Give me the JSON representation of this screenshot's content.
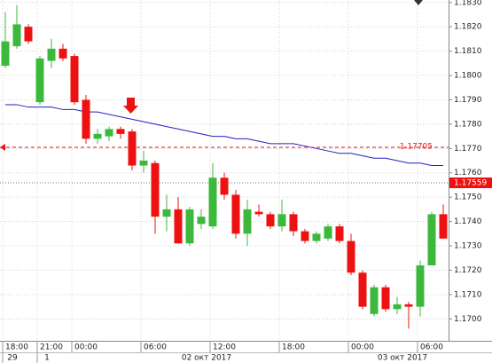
{
  "chart_data": {
    "type": "candlestick",
    "categories": [
      "18:00",
      null,
      null,
      "21:00",
      null,
      null,
      "00:00",
      null,
      null,
      null,
      null,
      null,
      "06:00",
      null,
      null,
      null,
      null,
      null,
      "12:00",
      null,
      null,
      null,
      null,
      null,
      "18:00",
      null,
      null,
      null,
      null,
      null,
      "00:00",
      null,
      null,
      null,
      null,
      null,
      "06:00",
      null,
      null
    ],
    "dates": [
      "29",
      null,
      null,
      "1",
      null,
      null,
      null,
      null,
      null,
      null,
      null,
      null,
      null,
      null,
      null,
      null,
      null,
      "02 окт 2017",
      null,
      null,
      null,
      null,
      null,
      null,
      null,
      null,
      null,
      null,
      null,
      null,
      null,
      null,
      null,
      null,
      "03 окт 2017",
      null,
      null,
      null,
      null
    ],
    "open": [
      1.1804,
      1.1812,
      1.182,
      1.1789,
      1.1806,
      1.1811,
      1.1808,
      1.179,
      1.1774,
      1.1775,
      1.1778,
      1.1777,
      1.1763,
      1.1764,
      1.1742,
      1.1745,
      1.1731,
      1.1739,
      1.1738,
      1.1758,
      1.1751,
      1.1735,
      1.1744,
      1.1743,
      1.1738,
      1.1743,
      1.1736,
      1.1732,
      1.1733,
      1.1738,
      1.1732,
      1.1719,
      1.1702,
      1.1713,
      1.1704,
      1.1706,
      1.1705,
      1.1722,
      1.1743
    ],
    "high": [
      1.1826,
      1.1829,
      1.1821,
      1.1808,
      1.1815,
      1.1813,
      1.1809,
      1.1792,
      1.1778,
      1.1779,
      1.1779,
      1.1778,
      1.1769,
      1.1765,
      1.1751,
      1.175,
      1.1746,
      1.1745,
      1.1764,
      1.176,
      1.1753,
      1.1749,
      1.1747,
      1.1744,
      1.1749,
      1.1744,
      1.1737,
      1.1736,
      1.1739,
      1.1739,
      1.1735,
      1.172,
      1.1714,
      1.1714,
      1.1709,
      1.1707,
      1.1724,
      1.1744,
      1.1747
    ],
    "low": [
      1.1803,
      1.1811,
      1.1813,
      1.1788,
      1.1803,
      1.1806,
      1.1788,
      1.1772,
      1.1772,
      1.1773,
      1.1774,
      1.1761,
      1.176,
      1.1735,
      1.1736,
      1.1731,
      1.173,
      1.1737,
      1.1737,
      1.1749,
      1.1733,
      1.173,
      1.1742,
      1.1737,
      1.1736,
      1.1734,
      1.1731,
      1.1731,
      1.1732,
      1.1731,
      1.1718,
      1.1704,
      1.1701,
      1.1703,
      1.1702,
      1.1696,
      1.1701,
      1.1722,
      1.1733
    ],
    "close": [
      1.1814,
      1.1821,
      1.1814,
      1.1807,
      1.1811,
      1.1807,
      1.1789,
      1.1774,
      1.1776,
      1.1778,
      1.1776,
      1.1763,
      1.1765,
      1.1742,
      1.1745,
      1.1731,
      1.1745,
      1.1742,
      1.1758,
      1.1751,
      1.1735,
      1.1745,
      1.1743,
      1.1738,
      1.1743,
      1.1736,
      1.1732,
      1.1735,
      1.1738,
      1.1732,
      1.1719,
      1.1705,
      1.1713,
      1.1704,
      1.1706,
      1.1705,
      1.1722,
      1.1743,
      1.1733
    ],
    "up_color": "#3cb83c",
    "down_color": "#ee1111",
    "ma": {
      "color": "#2020c0",
      "values": [
        1.1788,
        1.1788,
        1.1787,
        1.1787,
        1.1787,
        1.1786,
        1.1786,
        1.1785,
        1.1785,
        1.1784,
        1.1783,
        1.1782,
        1.1781,
        1.178,
        1.1779,
        1.1778,
        1.1777,
        1.1776,
        1.1775,
        1.1775,
        1.1774,
        1.1774,
        1.1773,
        1.1772,
        1.1772,
        1.1772,
        1.1771,
        1.177,
        1.1769,
        1.1768,
        1.1768,
        1.1767,
        1.1766,
        1.1766,
        1.1765,
        1.1764,
        1.1764,
        1.1763,
        1.1763
      ]
    },
    "hlines": [
      {
        "value": 1.17705,
        "color": "#ee1111"
      }
    ],
    "last_price": {
      "value": 1.17559,
      "color": "#ee1111"
    },
    "ylim": [
      1.1691,
      1.1831
    ],
    "yticks": [
      {
        "value": 1.17,
        "label": "1.1700"
      },
      {
        "value": 1.171,
        "label": "1.1710"
      },
      {
        "value": 1.172,
        "label": "1.1720"
      },
      {
        "value": 1.173,
        "label": "1.1730"
      },
      {
        "value": 1.174,
        "label": "1.1740"
      },
      {
        "value": 1.175,
        "label": "1.1750"
      },
      {
        "value": 1.176,
        "label": "1.1760"
      },
      {
        "value": 1.177,
        "label": "1.1770"
      },
      {
        "value": 1.178,
        "label": "1.1780"
      },
      {
        "value": 1.179,
        "label": "1.1790"
      },
      {
        "value": 1.18,
        "label": "1.1800"
      },
      {
        "value": 1.181,
        "label": "1.1810"
      },
      {
        "value": 1.182,
        "label": "1.1820"
      },
      {
        "value": 1.183,
        "label": "1.1830"
      }
    ],
    "grid": true
  }
}
